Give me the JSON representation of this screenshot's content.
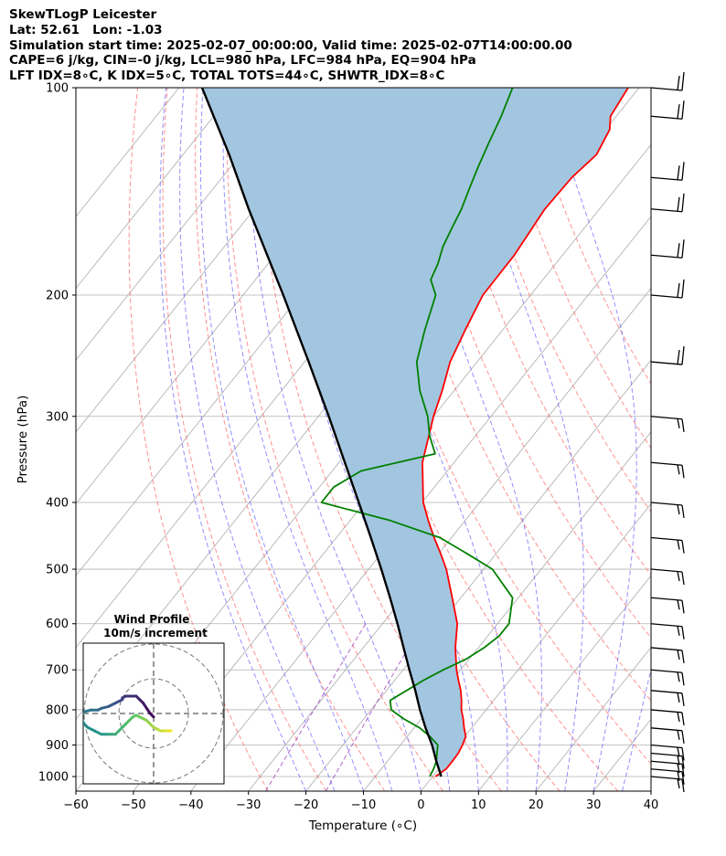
{
  "header": {
    "line1": "SkewTLogP Leicester",
    "line2": "Lat: 52.61   Lon: -1.03",
    "line3": "Simulation start time: 2025-02-07_00:00:00, Valid time: 2025-02-07T14:00:00.00",
    "line4": "CAPE=6 j/kg, CIN=-0 j/kg, LCL=980 hPa, LFC=984 hPa, EQ=904 hPa",
    "line5": "LFT IDX=8∘C, K IDX=5∘C, TOTAL TOTS=44∘C, SHWTR_IDX=8∘C"
  },
  "inset": {
    "title_line1": "Wind Profile",
    "title_line2": "10m/s increment"
  },
  "chart_data": {
    "type": "line",
    "subtype": "skew-t log-p",
    "xlabel": "Temperature (∘C)",
    "ylabel": "Pressure (hPa)",
    "xlim": [
      -60,
      40
    ],
    "ylim": [
      1050,
      100
    ],
    "y_scale": "log",
    "grid": true,
    "x_ticks": [
      -60,
      -50,
      -40,
      -30,
      -20,
      -10,
      0,
      10,
      20,
      30,
      40
    ],
    "y_ticks": [
      1000,
      900,
      800,
      700,
      600,
      500,
      400,
      300,
      200,
      100
    ],
    "colors": {
      "temperature": "#ff0000",
      "dewpoint": "#008000",
      "parcel": "#000000",
      "cape_fill": "#a3c6e0",
      "dry_adiabat": "#ff6b6b",
      "moist_adiabat": "#6b6bff",
      "mixing_ratio": "#a040c0",
      "isotherm": "#aaaaaa"
    },
    "series": [
      {
        "p": [
          1000,
          975,
          950,
          925,
          900,
          875,
          850,
          825,
          800,
          775,
          750,
          725,
          700,
          650,
          600,
          550,
          500,
          475,
          450,
          425,
          400,
          350,
          300,
          275,
          250,
          225,
          200,
          175,
          150,
          135,
          125,
          115,
          110,
          100
        ],
        "t": [
          0.5,
          1.3,
          1.3,
          1.2,
          0.8,
          0.2,
          -1.3,
          -2.7,
          -4.3,
          -5.6,
          -7.1,
          -8.9,
          -10.7,
          -14.0,
          -17.0,
          -21.5,
          -26.5,
          -29.6,
          -33.0,
          -36.4,
          -39.8,
          -45.5,
          -50.0,
          -52.1,
          -54.7,
          -56.5,
          -58.3,
          -58.4,
          -59.5,
          -59.2,
          -58.1,
          -59.3,
          -61.0,
          -61.9
        ]
      },
      {
        "p": [
          1000,
          975,
          950,
          925,
          900,
          875,
          850,
          825,
          800,
          775,
          750,
          725,
          700,
          675,
          650,
          625,
          600,
          550,
          500,
          475,
          450,
          425,
          400,
          380,
          360,
          340,
          320,
          300,
          275,
          250,
          225,
          200,
          190,
          180,
          170,
          160,
          150,
          140,
          130,
          120,
          110,
          100
        ],
        "t": [
          -0.5,
          -0.9,
          -1.5,
          -2.5,
          -3.5,
          -6.0,
          -9.0,
          -13.0,
          -16.5,
          -18.0,
          -16.5,
          -15.0,
          -13.0,
          -10.5,
          -9.0,
          -8.0,
          -8.0,
          -11.0,
          -18.5,
          -25.0,
          -32.0,
          -43.0,
          -57.5,
          -57.5,
          -55.0,
          -44.5,
          -48.0,
          -51.0,
          -56.0,
          -60.5,
          -63.5,
          -66.5,
          -69.5,
          -70.5,
          -72.0,
          -73.0,
          -74.0,
          -75.5,
          -77.0,
          -78.5,
          -80.0,
          -82.0
        ]
      },
      {
        "p": [
          1000,
          950,
          900,
          850,
          800,
          750,
          700,
          650,
          600,
          550,
          500,
          450,
          400,
          350,
          300,
          250,
          200,
          150,
          125,
          100
        ],
        "t": [
          1.5,
          -1.5,
          -4.5,
          -8.0,
          -11.5,
          -15.0,
          -18.9,
          -23.0,
          -27.4,
          -32.3,
          -37.8,
          -44.0,
          -51.0,
          -59.0,
          -68.2,
          -79.3,
          -93.0,
          -111.0,
          -122.0,
          -136.0
        ]
      }
    ],
    "wind_barbs": [
      1000,
      975,
      950,
      925,
      900,
      850,
      800,
      750,
      700,
      650,
      600,
      550,
      500,
      450,
      400,
      350,
      300,
      250,
      200,
      175,
      150,
      135,
      110,
      100
    ],
    "wind_hodograph": {
      "type": "scatter",
      "x": [
        5,
        5,
        4,
        3,
        2,
        1,
        0,
        -1,
        -2,
        -3,
        -4,
        -5,
        -6,
        -7,
        -8,
        -9,
        -10,
        -11,
        -12,
        -13,
        -14,
        -15,
        -17,
        -19,
        -20,
        -21,
        -21,
        -20,
        -18,
        -16,
        -15,
        -13,
        -12,
        -11,
        -10,
        -9,
        -9,
        -8,
        -7,
        -5,
        -4,
        -3,
        -2,
        -1,
        0
      ],
      "y": [
        -5,
        -5,
        -5,
        -5,
        -5,
        -4.5,
        -4,
        -3,
        -2,
        -1.5,
        -1,
        -0.5,
        -1,
        -2,
        -3,
        -4,
        -5,
        -6,
        -6,
        -6,
        -6,
        -6,
        -5,
        -4,
        -3,
        -1,
        0,
        0.5,
        1,
        1,
        1.5,
        2,
        2.5,
        3,
        3.5,
        4,
        4.5,
        5,
        5,
        5,
        4,
        3,
        1.5,
        0,
        -1
      ]
    }
  }
}
